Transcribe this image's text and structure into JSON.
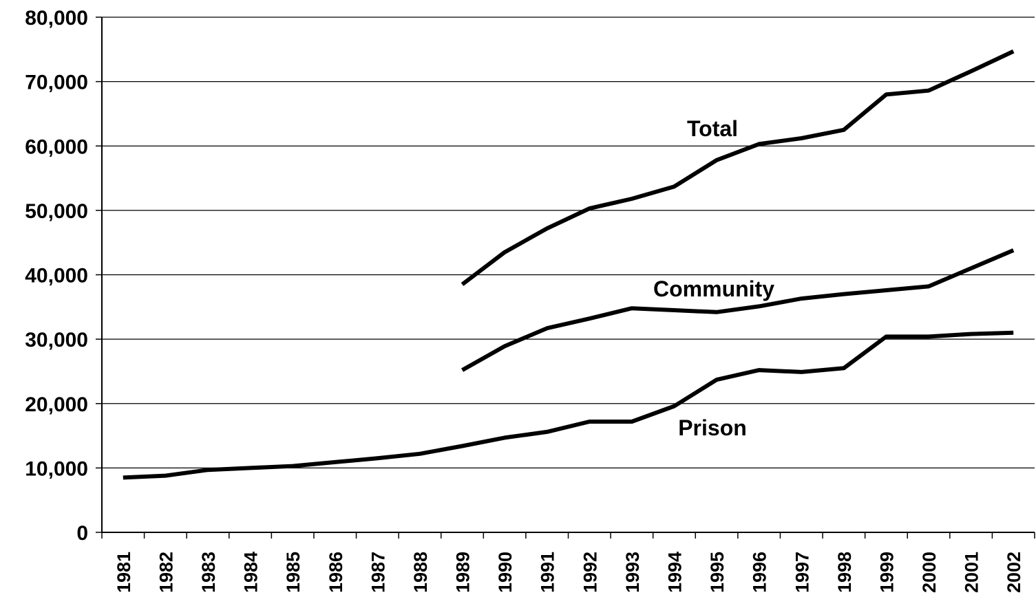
{
  "chart_data": {
    "type": "line",
    "x": [
      "1981",
      "1982",
      "1983",
      "1984",
      "1985",
      "1986",
      "1987",
      "1988",
      "1989",
      "1990",
      "1991",
      "1992",
      "1993",
      "1994",
      "1995",
      "1996",
      "1997",
      "1998",
      "1999",
      "2000",
      "2001",
      "2002"
    ],
    "ylim": [
      0,
      80000
    ],
    "yticks": [
      0,
      10000,
      20000,
      30000,
      40000,
      50000,
      60000,
      70000,
      80000
    ],
    "ytick_labels": [
      "0",
      "10,000",
      "20,000",
      "30,000",
      "40,000",
      "50,000",
      "60,000",
      "70,000",
      "80,000"
    ],
    "grid": true,
    "legend": "none",
    "line_color": "#000000",
    "grid_color": "#000000",
    "series": [
      {
        "name": "Total",
        "values": [
          null,
          null,
          null,
          null,
          null,
          null,
          null,
          null,
          38500,
          43500,
          47200,
          50300,
          51800,
          53700,
          57800,
          60300,
          61200,
          62500,
          68000,
          68600,
          71600,
          74700
        ]
      },
      {
        "name": "Community",
        "values": [
          null,
          null,
          null,
          null,
          null,
          null,
          null,
          null,
          25200,
          28900,
          31700,
          33200,
          34800,
          34500,
          34200,
          35100,
          36300,
          37000,
          37600,
          38200,
          41000,
          43800
        ]
      },
      {
        "name": "Prison",
        "values": [
          8500,
          8800,
          9700,
          10000,
          10300,
          10900,
          11500,
          12200,
          13400,
          14700,
          15600,
          17200,
          17200,
          19600,
          23700,
          25200,
          24900,
          25500,
          30400,
          30400,
          30800,
          31000
        ]
      }
    ]
  }
}
